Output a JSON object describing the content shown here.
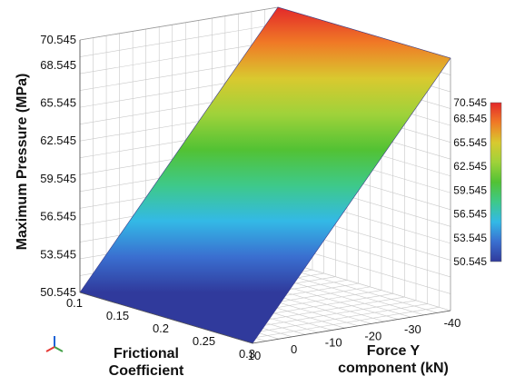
{
  "chart_data": {
    "type": "surface",
    "zlabel": "Maximum Pressure (MPa)",
    "xlabel": [
      "Frictional",
      "Coefficient"
    ],
    "ylabel": [
      "Force Y",
      "component (kN)"
    ],
    "x_ticks": [
      "0.1",
      "0.15",
      "0.2",
      "0.25",
      "0.3"
    ],
    "y_ticks": [
      "10",
      "0",
      "-10",
      "-20",
      "-30",
      "-40"
    ],
    "z_ticks": [
      "50.545",
      "53.545",
      "56.545",
      "59.545",
      "62.545",
      "65.545",
      "68.545",
      "70.545"
    ],
    "colorbar_ticks": [
      "50.545",
      "53.545",
      "56.545",
      "59.545",
      "62.545",
      "65.545",
      "68.545",
      "70.545"
    ],
    "xlim": [
      0.1,
      0.3
    ],
    "ylim": [
      10,
      -40
    ],
    "zlim": [
      50.545,
      70.545
    ],
    "surface_corners": [
      {
        "x": 0.1,
        "y": 10,
        "z": 50.545
      },
      {
        "x": 0.3,
        "y": 10,
        "z": 50.545
      },
      {
        "x": 0.1,
        "y": -40,
        "z": 70.545
      },
      {
        "x": 0.3,
        "y": -40,
        "z": 70.545
      }
    ],
    "colormap": [
      "#303a9c",
      "#3a6fd0",
      "#33b9e6",
      "#3ec98a",
      "#52c234",
      "#9fd23a",
      "#d9c92f",
      "#f07a26",
      "#e3282a"
    ],
    "grid": true,
    "colorbar": "right"
  },
  "triad": {
    "colors": {
      "x": "#e53935",
      "y": "#43a047",
      "z": "#1e63d6"
    }
  }
}
